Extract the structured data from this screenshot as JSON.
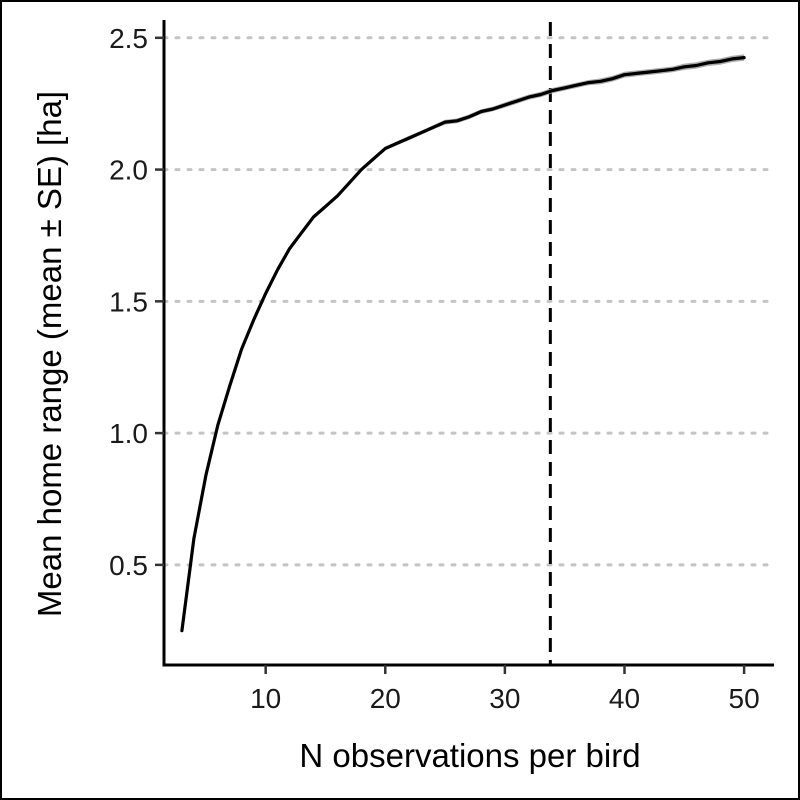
{
  "chart_data": {
    "type": "line",
    "title": "",
    "xlabel": "N observations per bird",
    "ylabel": "Mean home range (mean ± SE) [ha]",
    "xlim": [
      1.5,
      52.5
    ],
    "ylim": [
      0.12,
      2.56
    ],
    "x_ticks": [
      10,
      20,
      30,
      40,
      50
    ],
    "y_ticks": [
      0.5,
      1.0,
      1.5,
      2.0,
      2.5
    ],
    "x_tick_labels": [
      "10",
      "20",
      "30",
      "40",
      "50"
    ],
    "y_tick_labels": [
      "0.5",
      "1.0",
      "1.5",
      "2.0",
      "2.5"
    ],
    "grid": "horizontal dotted at y ticks",
    "legend": "none",
    "reference_line": {
      "x": 33.8,
      "style": "dashed",
      "color": "#000000"
    },
    "series": [
      {
        "color": "#000000",
        "band_color": "#9e9e9e",
        "x": [
          3,
          4,
          5,
          6,
          7,
          8,
          9,
          10,
          11,
          12,
          13,
          14,
          15,
          16,
          17,
          18,
          19,
          20,
          21,
          22,
          23,
          24,
          25,
          26,
          27,
          28,
          29,
          30,
          31,
          32,
          33,
          34,
          35,
          36,
          37,
          38,
          39,
          40,
          41,
          42,
          43,
          44,
          45,
          46,
          47,
          48,
          49,
          50
        ],
        "y": [
          0.25,
          0.6,
          0.84,
          1.03,
          1.18,
          1.32,
          1.43,
          1.53,
          1.62,
          1.7,
          1.76,
          1.82,
          1.86,
          1.9,
          1.95,
          2.0,
          2.04,
          2.08,
          2.1,
          2.12,
          2.14,
          2.16,
          2.18,
          2.185,
          2.2,
          2.22,
          2.23,
          2.245,
          2.26,
          2.275,
          2.285,
          2.3,
          2.31,
          2.32,
          2.33,
          2.335,
          2.345,
          2.36,
          2.365,
          2.37,
          2.375,
          2.38,
          2.39,
          2.395,
          2.405,
          2.41,
          2.42,
          2.425
        ],
        "se": [
          0.004,
          0.005,
          0.005,
          0.005,
          0.005,
          0.006,
          0.006,
          0.006,
          0.006,
          0.006,
          0.006,
          0.006,
          0.006,
          0.006,
          0.007,
          0.007,
          0.007,
          0.007,
          0.008,
          0.008,
          0.008,
          0.008,
          0.009,
          0.009,
          0.009,
          0.009,
          0.009,
          0.01,
          0.01,
          0.01,
          0.01,
          0.01,
          0.01,
          0.01,
          0.01,
          0.011,
          0.011,
          0.011,
          0.011,
          0.011,
          0.011,
          0.011,
          0.012,
          0.012,
          0.012,
          0.012,
          0.012,
          0.012
        ]
      }
    ]
  }
}
